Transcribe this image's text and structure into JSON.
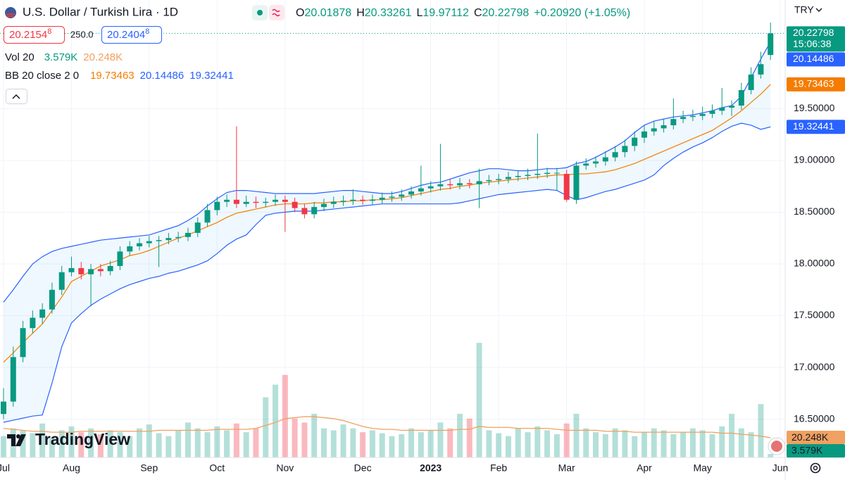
{
  "ui": {
    "symbol_title": "U.S. Dollar / Turkish Lira · 1D",
    "ohlc_labels": [
      "O",
      "H",
      "L",
      "C"
    ],
    "change": "+0.20920 (+1.05%)",
    "sell_price": "20.2154",
    "sell_price_sup": "8",
    "spread": "250.0",
    "buy_price": "20.2404",
    "buy_price_sup": "8",
    "currency": "TRY",
    "countdown": "15:06:38",
    "logo": "TradingView"
  },
  "chart_data": {
    "type": "candlestick",
    "categories": [
      "Jul",
      null,
      null,
      null,
      null,
      null,
      null,
      "Aug",
      null,
      null,
      null,
      null,
      null,
      null,
      null,
      "Sep",
      null,
      null,
      null,
      null,
      null,
      null,
      "Oct",
      null,
      null,
      null,
      null,
      null,
      null,
      "Nov",
      null,
      null,
      null,
      null,
      null,
      null,
      null,
      "Dec",
      null,
      null,
      null,
      null,
      null,
      null,
      "2023",
      null,
      null,
      null,
      null,
      null,
      null,
      "Feb",
      null,
      null,
      null,
      null,
      null,
      null,
      "Mar",
      null,
      null,
      null,
      null,
      null,
      null,
      null,
      "Apr",
      null,
      null,
      null,
      null,
      null,
      "May",
      null,
      null,
      null,
      null,
      null,
      null,
      null,
      "Jun"
    ],
    "open": [
      16.55,
      16.67,
      17.1,
      17.38,
      17.48,
      17.56,
      17.75,
      17.92,
      17.96,
      17.9,
      17.95,
      17.93,
      17.98,
      18.12,
      18.17,
      18.2,
      18.22,
      18.23,
      18.25,
      18.26,
      18.3,
      18.4,
      18.52,
      18.6,
      18.62,
      18.58,
      18.6,
      18.59,
      18.6,
      18.62,
      18.6,
      18.54,
      18.48,
      18.55,
      18.58,
      18.6,
      18.61,
      18.62,
      18.61,
      18.62,
      18.64,
      18.65,
      18.67,
      18.7,
      18.73,
      18.75,
      18.77,
      18.76,
      18.78,
      18.77,
      18.8,
      18.81,
      18.82,
      18.84,
      18.85,
      18.86,
      18.87,
      18.88,
      18.87,
      18.62,
      18.95,
      18.97,
      18.99,
      19.03,
      19.08,
      19.14,
      19.22,
      19.28,
      19.31,
      19.34,
      19.4,
      19.42,
      19.43,
      19.45,
      19.48,
      19.51,
      19.53,
      19.68,
      19.83,
      20.01878,
      null
    ],
    "high": [
      16.8,
      17.2,
      17.45,
      17.55,
      17.62,
      17.82,
      17.98,
      18.07,
      18.02,
      18.0,
      18.0,
      18.03,
      18.17,
      18.22,
      18.25,
      18.27,
      18.27,
      18.3,
      18.31,
      18.35,
      18.45,
      18.58,
      18.65,
      18.67,
      19.33,
      18.66,
      18.65,
      18.64,
      18.67,
      18.66,
      18.64,
      18.58,
      18.6,
      18.63,
      18.65,
      18.66,
      18.72,
      18.66,
      18.67,
      18.69,
      18.7,
      18.72,
      18.75,
      18.95,
      18.8,
      19.16,
      18.82,
      18.83,
      18.82,
      18.92,
      18.86,
      18.87,
      18.89,
      18.9,
      18.92,
      19.26,
      18.93,
      18.93,
      18.91,
      18.99,
      19.02,
      19.04,
      19.09,
      19.14,
      19.2,
      19.28,
      19.34,
      19.38,
      19.4,
      19.6,
      19.48,
      19.49,
      19.52,
      19.54,
      19.7,
      19.58,
      19.75,
      19.9,
      20.05,
      20.33261,
      null
    ],
    "low": [
      16.5,
      16.62,
      17.05,
      17.33,
      17.42,
      17.52,
      17.7,
      17.88,
      17.85,
      17.59,
      17.88,
      17.89,
      17.94,
      18.08,
      18.13,
      18.16,
      17.97,
      18.19,
      18.21,
      18.22,
      18.26,
      18.36,
      18.47,
      18.55,
      18.54,
      18.55,
      18.54,
      18.55,
      18.56,
      18.31,
      18.5,
      18.44,
      18.44,
      18.51,
      18.54,
      18.56,
      18.57,
      18.57,
      18.57,
      18.58,
      18.6,
      18.61,
      18.63,
      18.66,
      18.69,
      18.71,
      18.72,
      18.72,
      18.73,
      18.54,
      18.76,
      18.77,
      18.78,
      18.8,
      18.81,
      18.82,
      18.83,
      18.71,
      18.6,
      18.58,
      18.91,
      18.93,
      18.95,
      18.99,
      19.03,
      19.09,
      19.17,
      19.24,
      19.27,
      19.3,
      19.36,
      19.38,
      19.39,
      19.41,
      19.44,
      19.43,
      19.49,
      19.64,
      19.79,
      19.97112,
      null
    ],
    "close": [
      16.67,
      17.1,
      17.38,
      17.48,
      17.56,
      17.75,
      17.92,
      17.96,
      17.9,
      17.95,
      17.93,
      17.98,
      18.12,
      18.17,
      18.2,
      18.22,
      18.23,
      18.25,
      18.26,
      18.3,
      18.4,
      18.52,
      18.6,
      18.62,
      18.58,
      18.6,
      18.59,
      18.6,
      18.62,
      18.6,
      18.54,
      18.48,
      18.55,
      18.58,
      18.6,
      18.61,
      18.62,
      18.61,
      18.62,
      18.64,
      18.65,
      18.67,
      18.7,
      18.73,
      18.75,
      18.77,
      18.76,
      18.78,
      18.77,
      18.8,
      18.81,
      18.82,
      18.84,
      18.85,
      18.86,
      18.87,
      18.88,
      18.88,
      18.62,
      18.95,
      18.97,
      18.99,
      19.03,
      19.08,
      19.14,
      19.22,
      19.28,
      19.31,
      19.34,
      19.4,
      19.42,
      19.43,
      19.45,
      19.48,
      19.51,
      19.53,
      19.68,
      19.83,
      19.93,
      20.22798,
      null
    ],
    "colors": {
      "up": "#089981",
      "down": "#f23645"
    },
    "ylim": [
      16.13,
      20.55
    ],
    "yticks": [
      {
        "value": 16.5,
        "label": "16.50000"
      },
      {
        "value": 17,
        "label": "17.00000"
      },
      {
        "value": 17.5,
        "label": "17.50000"
      },
      {
        "value": 18,
        "label": "18.00000"
      },
      {
        "value": 18.5,
        "label": "18.50000"
      },
      {
        "value": 19,
        "label": "19.00000"
      },
      {
        "value": 19.5,
        "label": "19.50000"
      }
    ],
    "grid": true,
    "volume": {
      "legend": "Vol 20",
      "ylim": [
        0,
        150
      ],
      "values": [
        22,
        30,
        28,
        25,
        35,
        20,
        28,
        32,
        26,
        30,
        24,
        28,
        26,
        22,
        30,
        34,
        25,
        22,
        28,
        36,
        30,
        26,
        32,
        28,
        35,
        26,
        30,
        62,
        75,
        85,
        40,
        36,
        45,
        30,
        28,
        34,
        30,
        26,
        28,
        25,
        22,
        24,
        30,
        26,
        28,
        36,
        30,
        45,
        40,
        118,
        28,
        25,
        22,
        30,
        26,
        32,
        28,
        24,
        35,
        45,
        30,
        26,
        24,
        30,
        28,
        22,
        26,
        30,
        28,
        24,
        26,
        30,
        28,
        24,
        32,
        45,
        30,
        26,
        55,
        3.579,
        null
      ],
      "ma": [
        30,
        29,
        28,
        27,
        27,
        26,
        26,
        26,
        27,
        27,
        27,
        27,
        27,
        27,
        27,
        27,
        28,
        28,
        28,
        28,
        28,
        28,
        29,
        29,
        29,
        29,
        30,
        33,
        36,
        40,
        41,
        42,
        42,
        41,
        40,
        38,
        35,
        32,
        30,
        29,
        29,
        28,
        28,
        28,
        28,
        28,
        28,
        29,
        29,
        32,
        31,
        31,
        31,
        30,
        30,
        30,
        30,
        29,
        28,
        28,
        28,
        28,
        27,
        27,
        27,
        26,
        26,
        26,
        26,
        26,
        26,
        26,
        26,
        26,
        25,
        25,
        24,
        23,
        22,
        20.248,
        null
      ],
      "value_labels": {
        "last": "3.579K",
        "ma_last": "20.248K"
      },
      "ma_color": "#f0a060"
    },
    "bollinger": {
      "legend": "BB 20 close 2 0",
      "basis_color": "#f57c00",
      "band_color": "#2962ff",
      "basis": [
        17.05,
        17.14,
        17.24,
        17.33,
        17.42,
        17.55,
        17.68,
        17.83,
        17.88,
        17.93,
        17.98,
        18.01,
        18.04,
        18.08,
        18.1,
        18.13,
        18.17,
        18.21,
        18.25,
        18.28,
        18.32,
        18.36,
        18.4,
        18.45,
        18.49,
        18.51,
        18.53,
        18.55,
        18.57,
        18.58,
        18.58,
        18.58,
        18.59,
        18.59,
        18.6,
        18.6,
        18.61,
        18.61,
        18.62,
        18.62,
        18.63,
        18.64,
        18.66,
        18.68,
        18.7,
        18.72,
        18.73,
        18.75,
        18.76,
        18.78,
        18.79,
        18.8,
        18.81,
        18.82,
        18.83,
        18.84,
        18.85,
        18.86,
        18.86,
        18.87,
        18.87,
        18.88,
        18.89,
        18.91,
        18.94,
        18.97,
        19.01,
        19.05,
        19.09,
        19.13,
        19.17,
        19.21,
        19.25,
        19.29,
        19.35,
        19.41,
        19.48,
        19.56,
        19.64,
        19.73463,
        null
      ],
      "upper": [
        17.63,
        17.75,
        17.88,
        18.0,
        18.07,
        18.12,
        18.15,
        18.17,
        18.19,
        18.21,
        18.23,
        18.24,
        18.25,
        18.26,
        18.27,
        18.28,
        18.31,
        18.34,
        18.37,
        18.42,
        18.48,
        18.56,
        18.63,
        18.69,
        18.71,
        18.71,
        18.7,
        18.69,
        18.68,
        18.68,
        18.68,
        18.68,
        18.68,
        18.69,
        18.7,
        18.71,
        18.71,
        18.7,
        18.69,
        18.68,
        18.68,
        18.7,
        18.73,
        18.76,
        18.78,
        18.79,
        18.82,
        18.85,
        18.88,
        18.9,
        18.92,
        18.92,
        18.91,
        18.9,
        18.9,
        18.91,
        18.92,
        18.92,
        18.93,
        18.97,
        18.99,
        19.03,
        19.08,
        19.13,
        19.19,
        19.27,
        19.34,
        19.38,
        19.4,
        19.42,
        19.43,
        19.44,
        19.46,
        19.48,
        19.51,
        19.53,
        19.62,
        19.8,
        19.98,
        20.14486,
        null
      ],
      "lower": [
        16.47,
        16.49,
        16.51,
        16.53,
        16.54,
        16.85,
        17.2,
        17.43,
        17.52,
        17.6,
        17.66,
        17.71,
        17.76,
        17.8,
        17.83,
        17.86,
        17.88,
        17.91,
        17.93,
        17.96,
        17.99,
        18.03,
        18.1,
        18.18,
        18.24,
        18.28,
        18.38,
        18.47,
        18.49,
        18.5,
        18.51,
        18.51,
        18.51,
        18.52,
        18.53,
        18.54,
        18.55,
        18.56,
        18.57,
        18.58,
        18.58,
        18.58,
        18.58,
        18.58,
        18.58,
        18.58,
        18.58,
        18.59,
        18.61,
        18.63,
        18.65,
        18.67,
        18.68,
        18.69,
        18.7,
        18.71,
        18.72,
        18.71,
        18.66,
        18.62,
        18.64,
        18.67,
        18.7,
        18.72,
        18.75,
        18.78,
        18.81,
        18.86,
        18.95,
        19.02,
        19.08,
        19.13,
        19.17,
        19.22,
        19.28,
        19.33,
        19.36,
        19.34,
        19.3,
        19.32441,
        null
      ]
    }
  }
}
